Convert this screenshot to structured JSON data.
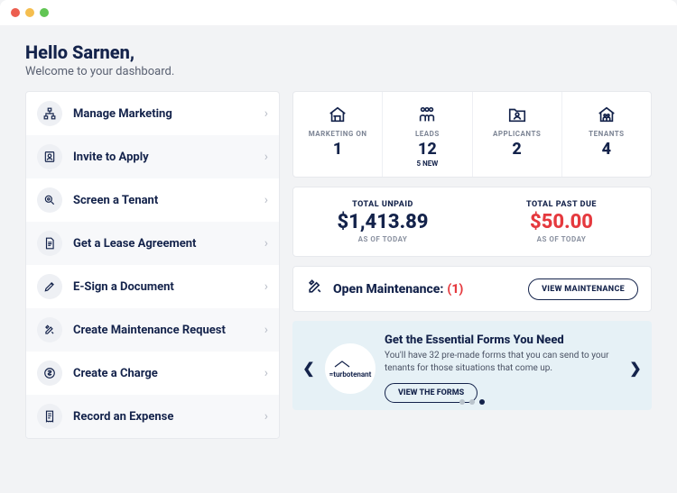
{
  "colors": {
    "bg": "#f2f3f5",
    "primary": "#14234b",
    "danger": "#e5393e",
    "card_border": "#e7e9ed",
    "promo_bg": "#e6f1f6"
  },
  "greeting": {
    "title": "Hello Sarnen,",
    "subtitle": "Welcome to your dashboard."
  },
  "actions": [
    {
      "label": "Manage Marketing",
      "icon": "hierarchy-icon"
    },
    {
      "label": "Invite to Apply",
      "icon": "person-card-icon"
    },
    {
      "label": "Screen a Tenant",
      "icon": "magnify-icon"
    },
    {
      "label": "Get a Lease Agreement",
      "icon": "document-lines-icon"
    },
    {
      "label": "E-Sign a Document",
      "icon": "pen-icon"
    },
    {
      "label": "Create Maintenance Request",
      "icon": "tools-icon"
    },
    {
      "label": "Create a Charge",
      "icon": "dollar-circle-icon"
    },
    {
      "label": "Record an Expense",
      "icon": "receipt-icon"
    }
  ],
  "stats": [
    {
      "label": "MARKETING ON",
      "value": "1",
      "sub": "",
      "icon": "house-icon"
    },
    {
      "label": "LEADS",
      "value": "12",
      "sub": "5 NEW",
      "icon": "people-icon"
    },
    {
      "label": "APPLICANTS",
      "value": "2",
      "sub": "",
      "icon": "folder-person-icon"
    },
    {
      "label": "TENANTS",
      "value": "4",
      "sub": "",
      "icon": "house-people-icon"
    }
  ],
  "money": {
    "unpaid": {
      "label": "TOTAL UNPAID",
      "value": "$1,413.89",
      "asof": "AS OF TODAY"
    },
    "pastdue": {
      "label": "TOTAL PAST DUE",
      "value": "$50.00",
      "asof": "AS OF TODAY"
    }
  },
  "maintenance": {
    "label": "Open Maintenance:",
    "count": "(1)",
    "button": "VIEW MAINTENANCE"
  },
  "promo": {
    "logo_text": "turbotenant",
    "title": "Get the Essential Forms You Need",
    "desc": "You'll have 32 pre-made forms that you can send to your tenants for those situations that come up.",
    "button": "VIEW THE FORMS",
    "slide_count": 3,
    "active_slide": 2
  }
}
